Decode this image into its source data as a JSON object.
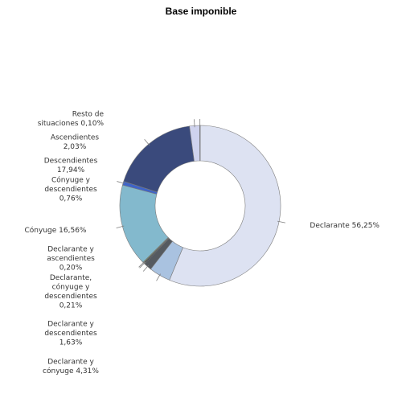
{
  "chart_data": {
    "type": "pie",
    "variant": "donut",
    "title": "Base imponible",
    "legend": "none",
    "slices": [
      {
        "name": "Declarante",
        "value": 56.25,
        "label_lines": [
          "Declarante 56,25%"
        ],
        "color": "#dde2f2"
      },
      {
        "name": "Declarante y cónyuge",
        "value": 4.31,
        "label_lines": [
          "Declarante y",
          "cónyuge 4,31%"
        ],
        "color": "#a9c2e0"
      },
      {
        "name": "Declarante y descendientes",
        "value": 1.63,
        "label_lines": [
          "Declarante y",
          "descendientes",
          "1,63%"
        ],
        "color": "#555a60"
      },
      {
        "name": "Declarante, cónyuge y descendientes",
        "value": 0.21,
        "label_lines": [
          "Declarante,",
          "cónyuge y",
          "descendientes",
          "0,21%"
        ],
        "color": "#2b2d33"
      },
      {
        "name": "Declarante y ascendientes",
        "value": 0.2,
        "label_lines": [
          "Declarante y",
          "ascendientes",
          "0,20%"
        ],
        "color": "#6d8a5a"
      },
      {
        "name": "Cónyuge",
        "value": 16.56,
        "label_lines": [
          "Cónyuge 16,56%"
        ],
        "color": "#83b9cd"
      },
      {
        "name": "Cónyuge y descendientes",
        "value": 0.76,
        "label_lines": [
          "Cónyuge y",
          "descendientes",
          "0,76%"
        ],
        "color": "#3f64c8"
      },
      {
        "name": "Descendientes",
        "value": 17.94,
        "label_lines": [
          "Descendientes",
          "17,94%"
        ],
        "color": "#3a4a7c"
      },
      {
        "name": "Ascendientes",
        "value": 2.03,
        "label_lines": [
          "Ascendientes",
          "2,03%"
        ],
        "color": "#cfd3ee"
      },
      {
        "name": "Resto de situaciones",
        "value": 0.1,
        "label_lines": [
          "Resto de",
          "situaciones 0,10%"
        ],
        "color": "#9fb0d6"
      }
    ]
  }
}
